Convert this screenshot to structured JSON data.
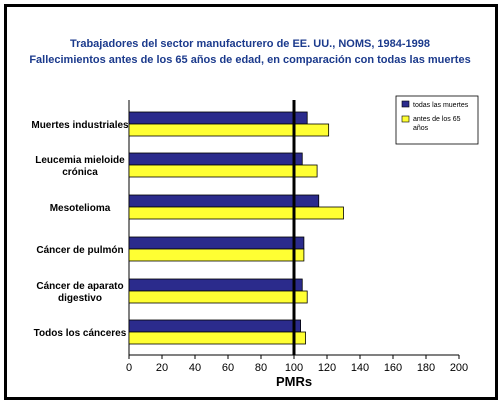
{
  "chart_data": {
    "type": "bar",
    "orientation": "horizontal",
    "title": "Trabajadores del sector manufacturero de EE. UU., NOMS, 1984-1998",
    "subtitle": "Fallecimientos antes de los 65 años de edad, en comparación con todas las muertes",
    "xlabel": "PMRs",
    "xlim": [
      0,
      200
    ],
    "xticks": [
      0,
      20,
      40,
      60,
      80,
      100,
      120,
      140,
      160,
      180,
      200
    ],
    "reference_line": 100,
    "categories": [
      [
        "Muertes industriales"
      ],
      [
        "Leucemia mieloide",
        "crónica"
      ],
      [
        "Mesotelioma"
      ],
      [
        "Cáncer de pulmón"
      ],
      [
        "Cáncer de aparato",
        "digestivo"
      ],
      [
        "Todos los cánceres"
      ]
    ],
    "series": [
      {
        "name": "todas las muertes",
        "color": "#2b2b8c",
        "values": [
          108,
          105,
          115,
          106,
          105,
          104
        ]
      },
      {
        "name_lines": [
          "antes de los 65",
          "años"
        ],
        "color": "#ffff33",
        "values": [
          121,
          114,
          130,
          106,
          108,
          107
        ]
      }
    ],
    "legend_position": "top-right"
  }
}
